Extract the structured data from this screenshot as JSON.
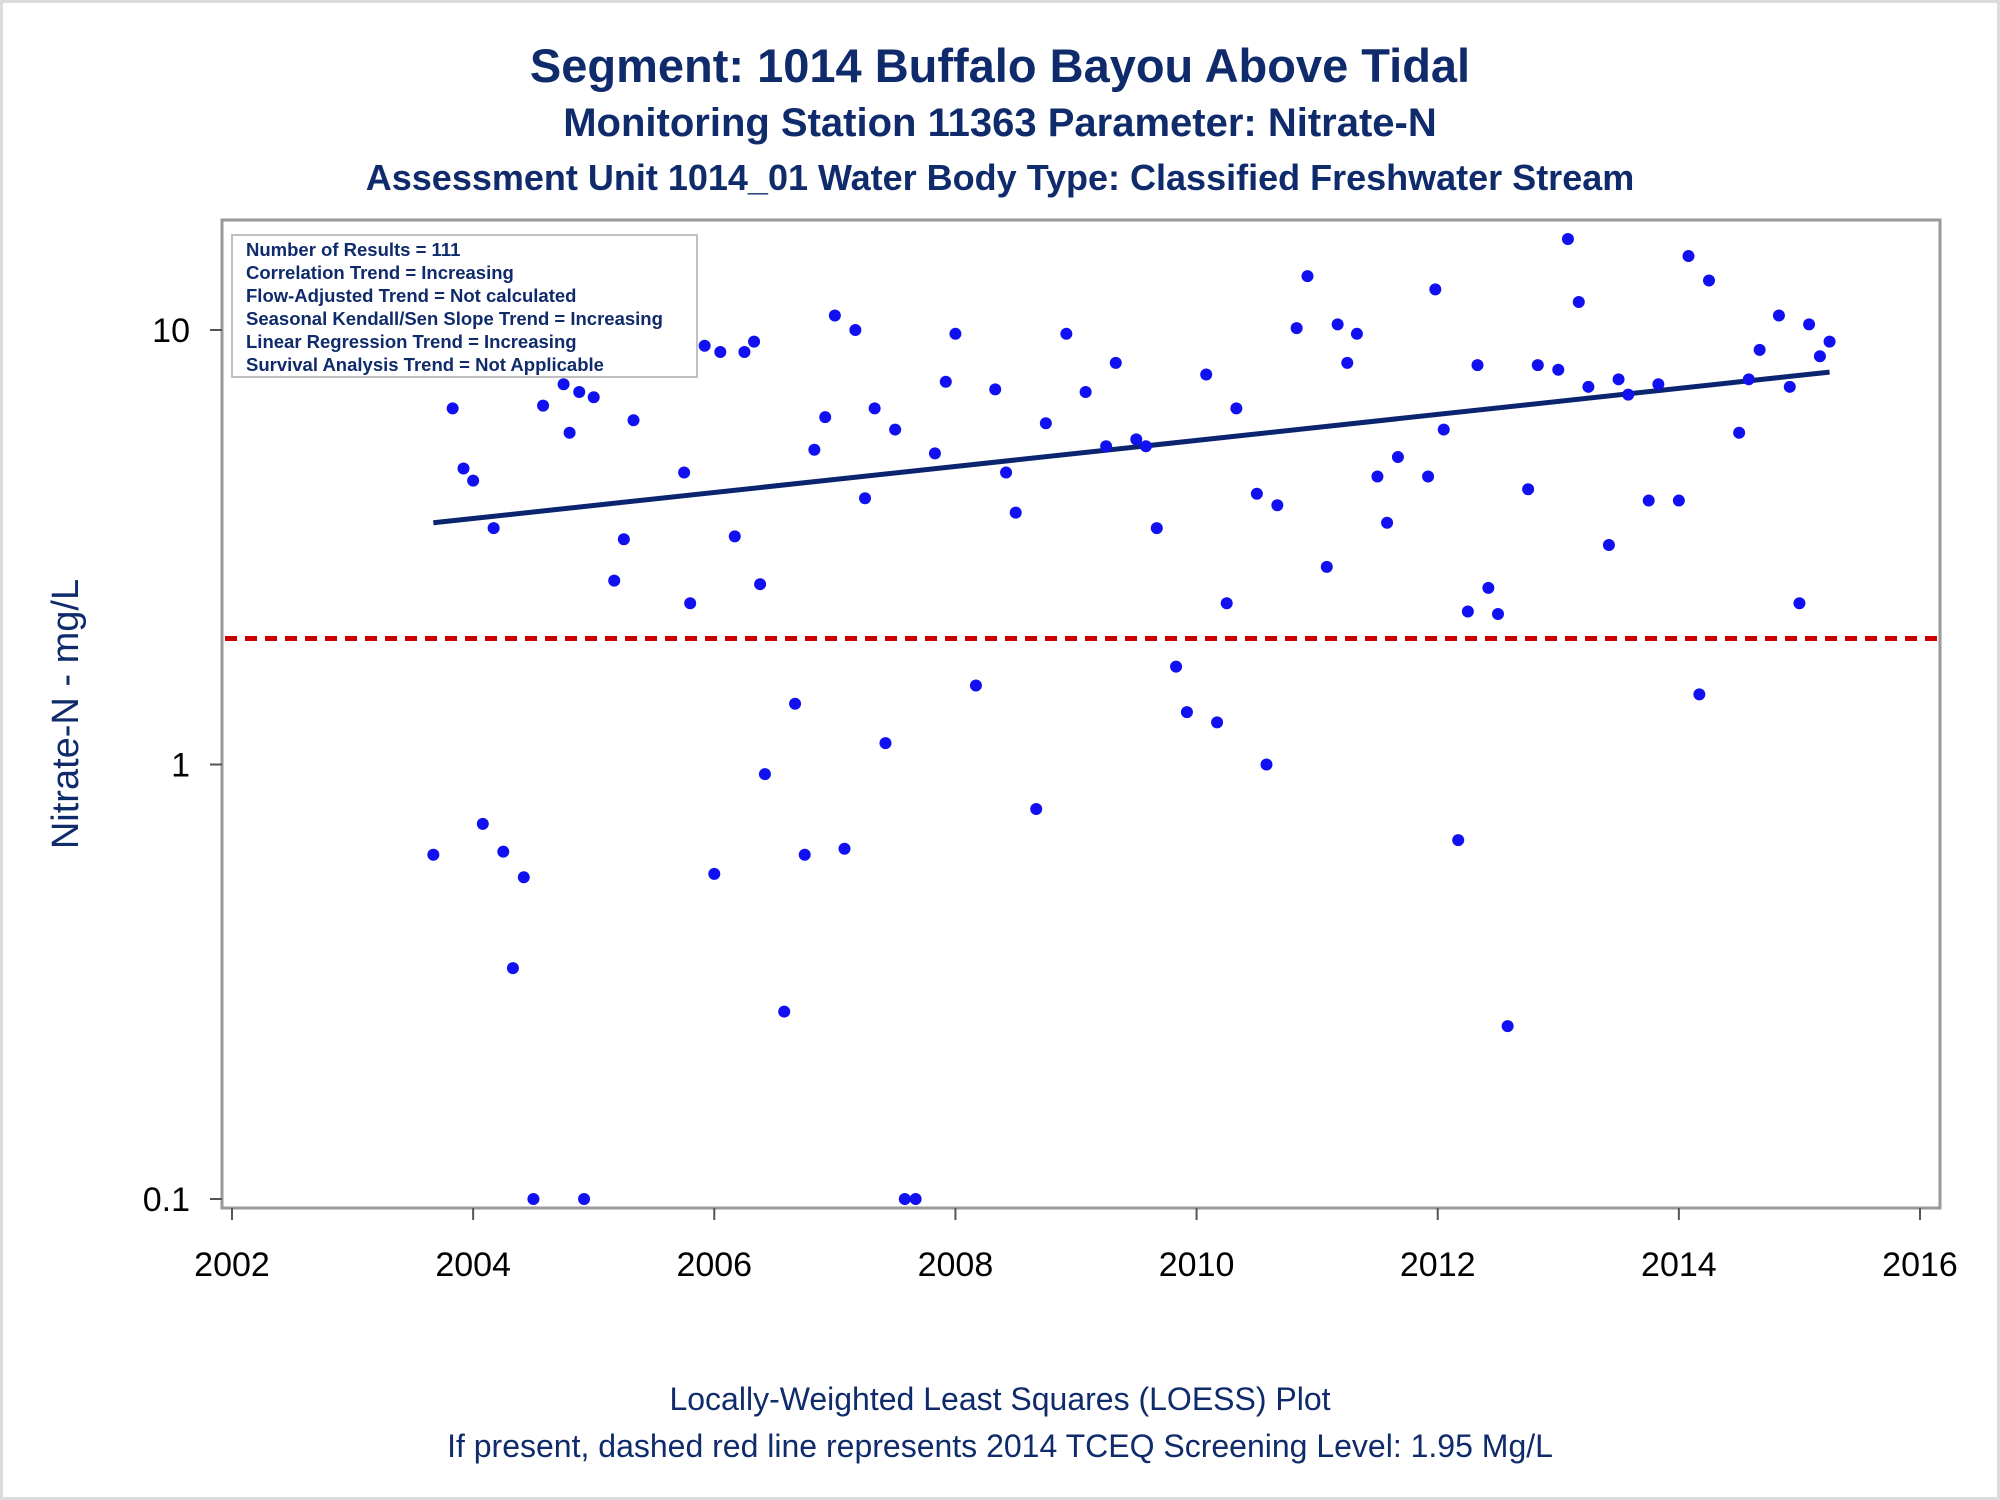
{
  "titles": {
    "line1": "Segment: 1014  Buffalo Bayou Above Tidal",
    "line2": "Monitoring Station 11363 Parameter: Nitrate-N",
    "line3": "Assessment Unit 1014_01   Water Body Type: Classified Freshwater Stream"
  },
  "footnotes": {
    "line1": "Locally-Weighted Least Squares (LOESS) Plot",
    "line2": "If present, dashed red line represents 2014 TCEQ Screening Level: 1.95 Mg/L"
  },
  "stats_box": [
    "Number of Results = 111",
    "Correlation Trend = Increasing",
    "Flow-Adjusted Trend = Not calculated",
    "Seasonal Kendall/Sen Slope Trend = Increasing",
    "Linear Regression Trend = Increasing",
    "Survival Analysis Trend = Not Applicable"
  ],
  "colors": {
    "title": "#0f2b6b",
    "points": "#1010f0",
    "trend_line": "#0a2470",
    "screening_line": "#cc0000",
    "frame": "#999999"
  },
  "chart_data": {
    "type": "scatter",
    "xlabel": "",
    "ylabel": "Nitrate-N - mg/L",
    "y_scale": "log",
    "xlim": [
      2002,
      2016
    ],
    "ylim": [
      0.1,
      17
    ],
    "x_ticks": [
      2002,
      2004,
      2006,
      2008,
      2010,
      2012,
      2014,
      2016
    ],
    "y_ticks": [
      {
        "value": 0.1,
        "label": "0.1"
      },
      {
        "value": 1,
        "label": "1"
      },
      {
        "value": 10,
        "label": "10"
      }
    ],
    "grid": false,
    "screening_level": 1.95,
    "trend_line": {
      "x": [
        2003.67,
        2015.25
      ],
      "y": [
        3.6,
        8.0
      ]
    },
    "points": [
      [
        2003.67,
        0.62
      ],
      [
        2003.83,
        6.6
      ],
      [
        2003.92,
        4.8
      ],
      [
        2004.0,
        4.5
      ],
      [
        2004.08,
        0.73
      ],
      [
        2004.17,
        3.5
      ],
      [
        2004.25,
        0.63
      ],
      [
        2004.33,
        0.34
      ],
      [
        2004.42,
        0.55
      ],
      [
        2004.5,
        0.1
      ],
      [
        2004.58,
        6.7
      ],
      [
        2004.75,
        7.5
      ],
      [
        2004.8,
        5.8
      ],
      [
        2004.88,
        7.2
      ],
      [
        2004.92,
        0.1
      ],
      [
        2005.0,
        7.0
      ],
      [
        2005.17,
        2.65
      ],
      [
        2005.25,
        3.3
      ],
      [
        2005.33,
        6.2
      ],
      [
        2005.38,
        8.2
      ],
      [
        2005.75,
        4.7
      ],
      [
        2005.8,
        2.35
      ],
      [
        2005.92,
        9.2
      ],
      [
        2006.0,
        0.56
      ],
      [
        2006.05,
        8.9
      ],
      [
        2006.17,
        3.35
      ],
      [
        2006.25,
        8.9
      ],
      [
        2006.33,
        9.4
      ],
      [
        2006.38,
        2.6
      ],
      [
        2006.42,
        0.95
      ],
      [
        2006.58,
        0.27
      ],
      [
        2006.67,
        1.38
      ],
      [
        2006.75,
        0.62
      ],
      [
        2006.83,
        5.3
      ],
      [
        2006.92,
        6.3
      ],
      [
        2007.0,
        10.8
      ],
      [
        2007.08,
        0.64
      ],
      [
        2007.17,
        10.0
      ],
      [
        2007.25,
        4.1
      ],
      [
        2007.33,
        6.6
      ],
      [
        2007.42,
        1.12
      ],
      [
        2007.5,
        5.9
      ],
      [
        2007.58,
        0.1
      ],
      [
        2007.67,
        0.1
      ],
      [
        2007.83,
        5.2
      ],
      [
        2007.92,
        7.6
      ],
      [
        2008.0,
        9.8
      ],
      [
        2008.17,
        1.52
      ],
      [
        2008.33,
        7.3
      ],
      [
        2008.42,
        4.7
      ],
      [
        2008.5,
        3.8
      ],
      [
        2008.67,
        0.79
      ],
      [
        2008.75,
        6.1
      ],
      [
        2008.92,
        9.8
      ],
      [
        2009.08,
        7.2
      ],
      [
        2009.25,
        5.4
      ],
      [
        2009.33,
        8.4
      ],
      [
        2009.5,
        5.6
      ],
      [
        2009.58,
        5.4
      ],
      [
        2009.67,
        3.5
      ],
      [
        2009.83,
        1.68
      ],
      [
        2009.92,
        1.32
      ],
      [
        2010.08,
        7.9
      ],
      [
        2010.17,
        1.25
      ],
      [
        2010.25,
        2.35
      ],
      [
        2010.33,
        6.6
      ],
      [
        2010.5,
        4.2
      ],
      [
        2010.58,
        1.0
      ],
      [
        2010.67,
        3.95
      ],
      [
        2010.83,
        10.1
      ],
      [
        2010.92,
        13.3
      ],
      [
        2011.08,
        2.85
      ],
      [
        2011.17,
        10.3
      ],
      [
        2011.25,
        8.4
      ],
      [
        2011.33,
        9.8
      ],
      [
        2011.5,
        4.6
      ],
      [
        2011.58,
        3.6
      ],
      [
        2011.67,
        5.1
      ],
      [
        2011.92,
        4.6
      ],
      [
        2011.98,
        12.4
      ],
      [
        2012.05,
        5.9
      ],
      [
        2012.17,
        0.67
      ],
      [
        2012.25,
        2.25
      ],
      [
        2012.33,
        8.3
      ],
      [
        2012.42,
        2.55
      ],
      [
        2012.5,
        2.22
      ],
      [
        2012.58,
        0.25
      ],
      [
        2012.75,
        4.3
      ],
      [
        2012.83,
        8.3
      ],
      [
        2013.0,
        8.1
      ],
      [
        2013.08,
        16.2
      ],
      [
        2013.17,
        11.6
      ],
      [
        2013.25,
        7.4
      ],
      [
        2013.42,
        3.2
      ],
      [
        2013.5,
        7.7
      ],
      [
        2013.58,
        7.1
      ],
      [
        2013.75,
        4.05
      ],
      [
        2013.83,
        7.5
      ],
      [
        2014.0,
        4.05
      ],
      [
        2014.08,
        14.8
      ],
      [
        2014.17,
        1.45
      ],
      [
        2014.25,
        13.0
      ],
      [
        2014.5,
        5.8
      ],
      [
        2014.58,
        7.7
      ],
      [
        2014.67,
        9.0
      ],
      [
        2014.83,
        10.8
      ],
      [
        2014.92,
        7.4
      ],
      [
        2015.0,
        2.35
      ],
      [
        2015.08,
        10.3
      ],
      [
        2015.17,
        8.7
      ],
      [
        2015.25,
        9.4
      ]
    ]
  }
}
